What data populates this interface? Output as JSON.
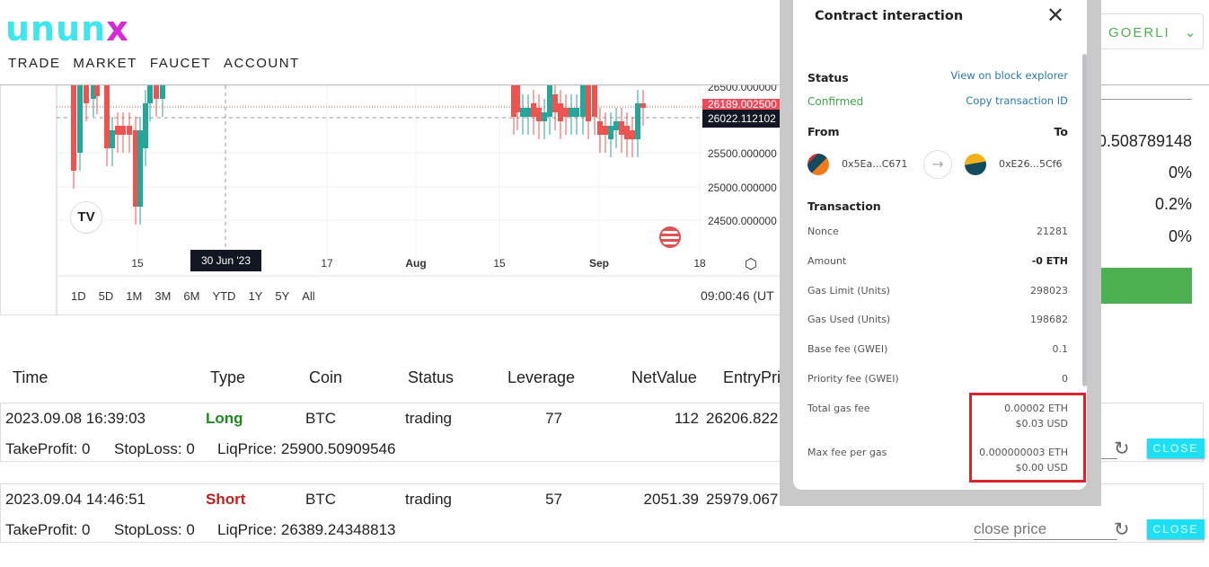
{
  "app": {
    "logo_a": "unun",
    "logo_b": "x"
  },
  "nav": [
    "TRADE",
    "MARKET",
    "FAUCET",
    "ACCOUNT"
  ],
  "network": {
    "label": "GOERLI"
  },
  "chart": {
    "price_ticks": [
      "26500.000000",
      "25500.000000",
      "25000.000000",
      "24500.000000"
    ],
    "last_price": "26189.002500",
    "cursor_price": "26022.112102",
    "time_ticks": [
      "15",
      "17",
      "Aug",
      "15",
      "Sep",
      "18"
    ],
    "cursor_date": "30 Jun '23",
    "ranges": [
      "1D",
      "5D",
      "1M",
      "3M",
      "6M",
      "YTD",
      "1Y",
      "5Y",
      "All"
    ],
    "clock": "09:00:46 (UT",
    "colors": {
      "up": "#26a69a",
      "down": "#ef5350"
    }
  },
  "right_panel": {
    "values": [
      "0.508789148",
      "0%",
      "0.2%",
      "0%"
    ],
    "button_color": "#4caf50"
  },
  "table": {
    "headers": [
      "Time",
      "Type",
      "Coin",
      "Status",
      "Leverage",
      "NetValue",
      "EntryPri"
    ],
    "rows": [
      {
        "time": "2023.09.08 16:39:03",
        "type": "Long",
        "coin": "BTC",
        "status": "trading",
        "leverage": "77",
        "net": "112",
        "entry": "26206.822",
        "tp": "TakeProfit: 0",
        "sl": "StopLoss: 0",
        "liq": "LiqPrice: 25900.50909546",
        "close": "CLOSE"
      },
      {
        "time": "2023.09.04 14:46:51",
        "type": "Short",
        "coin": "BTC",
        "status": "trading",
        "leverage": "57",
        "net": "2051.39",
        "entry": "25979.067",
        "tp": "TakeProfit: 0",
        "sl": "StopLoss: 0",
        "liq": "LiqPrice: 26389.24348813",
        "close": "CLOSE",
        "close_price_placeholder": "close price"
      }
    ]
  },
  "modal": {
    "title": "Contract interaction",
    "status_label": "Status",
    "status": "Confirmed",
    "explorer_link": "View on block explorer",
    "copy_link": "Copy transaction ID",
    "from_label": "From",
    "to_label": "To",
    "from": "0x5Ea...C671",
    "to": "0xE26...5Cf6",
    "transaction_label": "Transaction",
    "rows": [
      {
        "label": "Nonce",
        "value": "21281"
      },
      {
        "label": "Amount",
        "value": "-0 ETH"
      },
      {
        "label": "Gas Limit (Units)",
        "value": "298023"
      },
      {
        "label": "Gas Used (Units)",
        "value": "198682"
      },
      {
        "label": "Base fee (GWEI)",
        "value": "0.1"
      },
      {
        "label": "Priority fee (GWEI)",
        "value": "0"
      }
    ],
    "total_gas_label": "Total gas fee",
    "total_gas_eth": "0.00002 ETH",
    "total_gas_usd": "$0.03 USD",
    "max_fee_label": "Max fee per gas",
    "max_fee_eth": "0.000000003 ETH",
    "max_fee_usd": "$0.00 USD"
  }
}
